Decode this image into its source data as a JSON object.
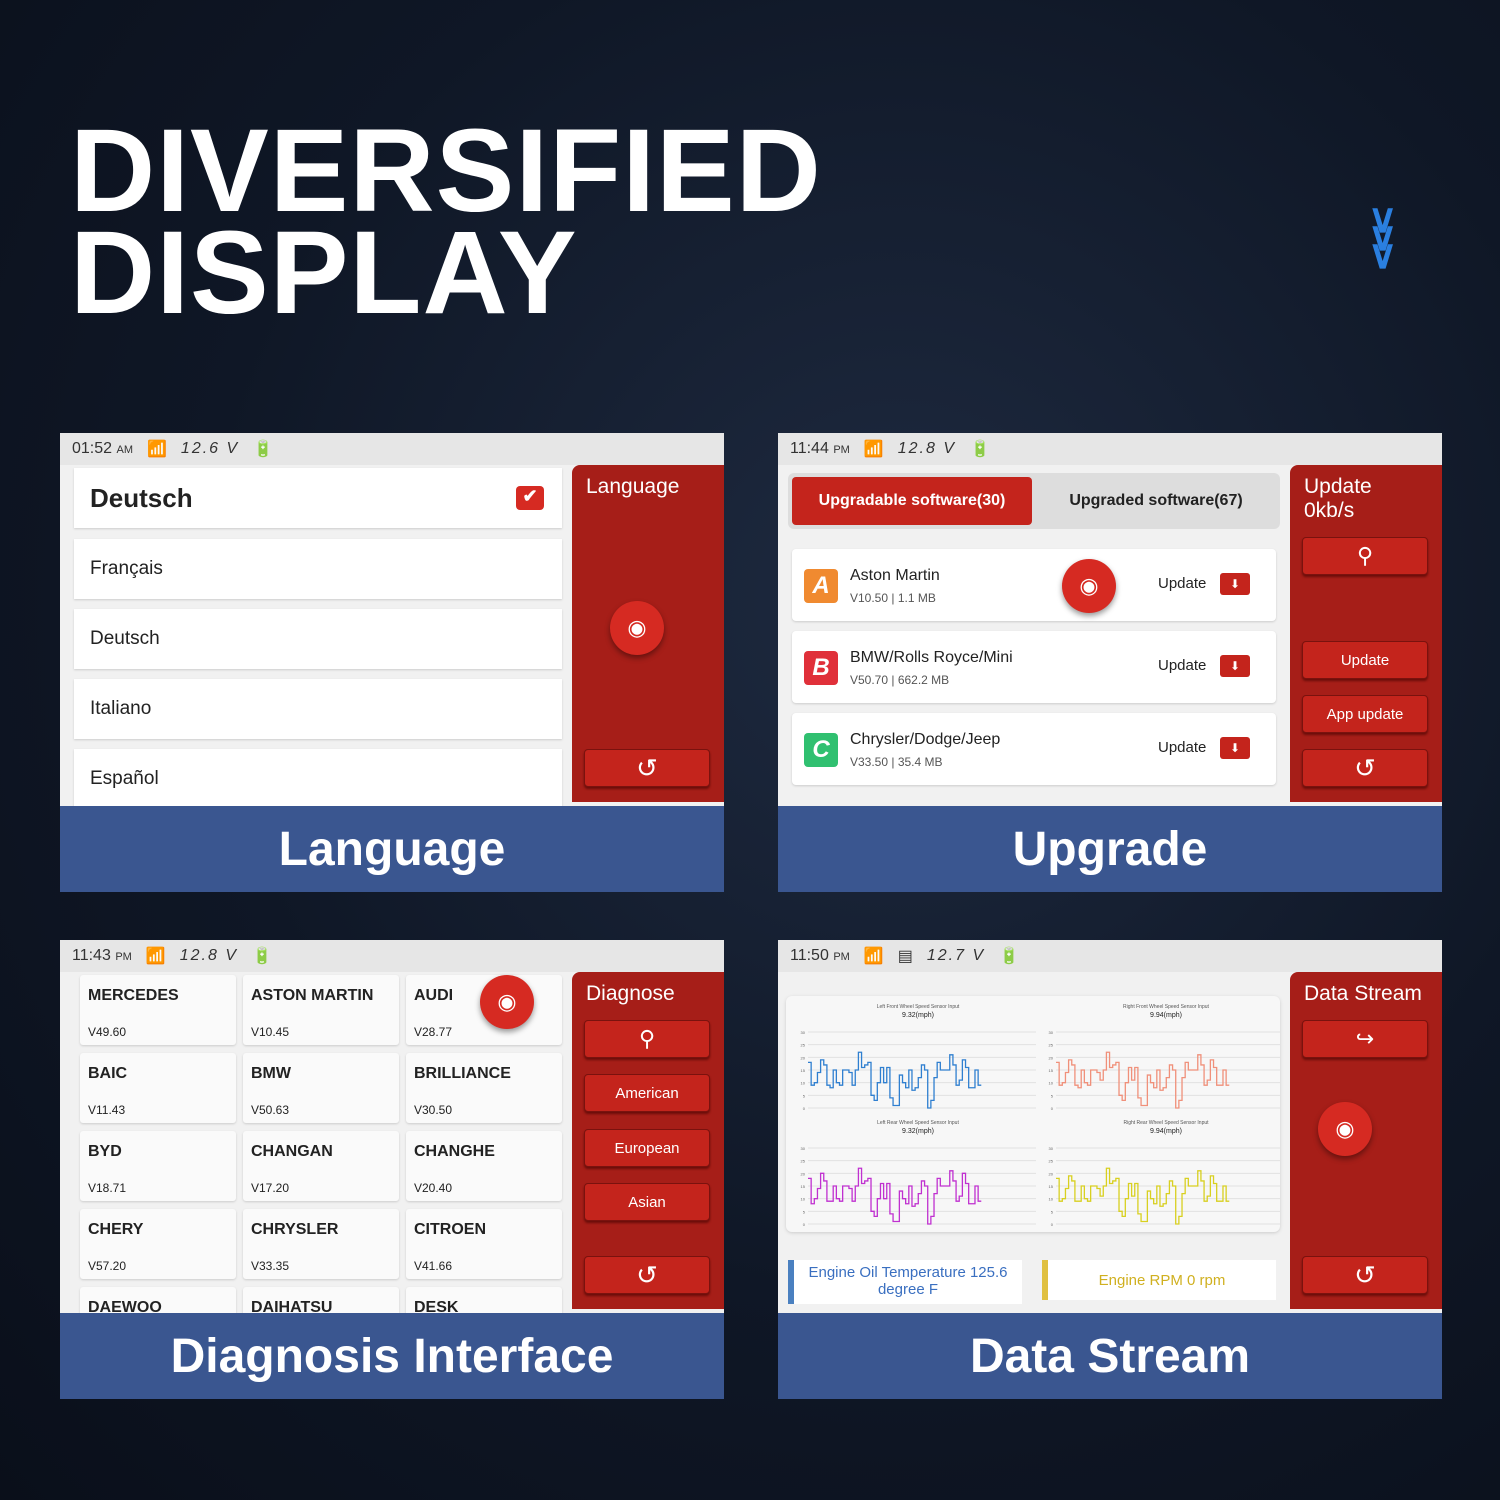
{
  "headline": {
    "line1": "DIVERSIFIED",
    "line2": "DISPLAY"
  },
  "icons": {
    "chevrons": "double-chevron-down-icon",
    "wifi": "wifi-icon",
    "battery": "battery-icon",
    "camera": "camera-icon",
    "search": "search-icon",
    "back": "back-arrow-icon",
    "exit": "exit-icon",
    "check": "checkbox-checked-icon",
    "download": "download-icon",
    "vci": "vci-connector-icon"
  },
  "colors": {
    "accent_red": "#a61e18",
    "caption_blue": "#3a5690",
    "blue": "#2f7fd0",
    "salmon": "#f0907a",
    "magenta": "#c030d0",
    "yellow": "#d8d020"
  },
  "language": {
    "time": "01:52",
    "ampm": "AM",
    "voltage": "12.6 V",
    "selected": "Deutsch",
    "items": [
      "Français",
      "Deutsch",
      "Italiano",
      "Español"
    ],
    "side_title": "Language",
    "caption": "Language"
  },
  "upgrade": {
    "time": "11:44",
    "ampm": "PM",
    "voltage": "12.8 V",
    "tabs": [
      "Upgradable software(30)",
      "Upgraded software(67)"
    ],
    "items": [
      {
        "letter": "A",
        "name": "Aston Martin",
        "meta": "V10.50 | 1.1 MB",
        "action": "Update"
      },
      {
        "letter": "B",
        "name": "BMW/Rolls Royce/Mini",
        "meta": "V50.70 | 662.2 MB",
        "action": "Update"
      },
      {
        "letter": "C",
        "name": "Chrysler/Dodge/Jeep",
        "meta": "V33.50 | 35.4 MB",
        "action": "Update"
      }
    ],
    "side_title": "Update",
    "speed": "0kb/s",
    "btn_update": "Update",
    "btn_app_update": "App update",
    "caption": "Upgrade"
  },
  "diagnose": {
    "time": "11:43",
    "ampm": "PM",
    "voltage": "12.8 V",
    "brands": [
      {
        "name": "MERCEDES",
        "ver": "V49.60"
      },
      {
        "name": "ASTON MARTIN",
        "ver": "V10.45"
      },
      {
        "name": "AUDI",
        "ver": "V28.77"
      },
      {
        "name": "BAIC",
        "ver": "V11.43"
      },
      {
        "name": "BMW",
        "ver": "V50.63"
      },
      {
        "name": "BRILLIANCE",
        "ver": "V30.50"
      },
      {
        "name": "BYD",
        "ver": "V18.71"
      },
      {
        "name": "CHANGAN",
        "ver": "V17.20"
      },
      {
        "name": "CHANGHE",
        "ver": "V20.40"
      },
      {
        "name": "CHERY",
        "ver": "V57.20"
      },
      {
        "name": "CHRYSLER",
        "ver": "V33.35"
      },
      {
        "name": "CITROEN",
        "ver": "V41.66"
      },
      {
        "name": "DAEWOO",
        "ver": ""
      },
      {
        "name": "DAIHATSU",
        "ver": ""
      },
      {
        "name": "DESK",
        "ver": ""
      }
    ],
    "side_title": "Diagnose",
    "filters": [
      "American",
      "European",
      "Asian"
    ],
    "caption": "Diagnosis Interface"
  },
  "datastream": {
    "time": "11:50",
    "ampm": "PM",
    "voltage": "12.7 V",
    "side_title": "Data Stream",
    "readouts": [
      "Engine Oil Temperature 125.6 degree F",
      "Engine RPM 0 rpm"
    ],
    "caption": "Data Stream"
  },
  "chart_data": [
    {
      "type": "line",
      "title": "Left Front Wheel Speed Sensor Input",
      "subtitle": "9.32(mph)",
      "ylim": [
        0,
        30
      ],
      "yticks": [
        0,
        5,
        10,
        15,
        20,
        25,
        30
      ],
      "grid": true,
      "color": "#2f7fd0",
      "values": [
        18,
        9,
        10,
        14,
        19,
        17,
        9,
        8,
        15,
        10,
        9,
        15,
        15,
        14,
        9,
        15,
        22,
        16,
        17,
        18,
        5,
        3,
        10,
        16,
        10,
        16,
        4,
        1,
        1,
        13,
        10,
        8,
        15,
        7,
        8,
        12,
        17,
        15,
        0,
        3,
        12,
        18,
        15,
        15,
        15,
        21,
        17,
        9,
        11,
        19,
        16,
        8,
        8,
        15,
        9
      ]
    },
    {
      "type": "line",
      "title": "Right Front Wheel Speed Sensor Input",
      "subtitle": "9.94(mph)",
      "ylim": [
        0,
        30
      ],
      "yticks": [
        0,
        5,
        10,
        15,
        20,
        25,
        30
      ],
      "grid": true,
      "color": "#f0907a",
      "values": [
        18,
        9,
        10,
        14,
        19,
        17,
        9,
        8,
        15,
        10,
        9,
        15,
        15,
        14,
        11,
        15,
        22,
        16,
        17,
        18,
        5,
        3,
        10,
        16,
        11,
        16,
        4,
        1,
        1,
        13,
        10,
        8,
        15,
        7,
        8,
        12,
        17,
        15,
        0,
        3,
        12,
        18,
        15,
        15,
        15,
        21,
        17,
        9,
        11,
        19,
        16,
        9,
        9,
        15,
        9
      ]
    },
    {
      "type": "line",
      "title": "Left Rear Wheel Speed Sensor Input",
      "subtitle": "9.32(mph)",
      "ylim": [
        0,
        30
      ],
      "yticks": [
        0,
        5,
        10,
        15,
        20,
        25,
        30
      ],
      "grid": true,
      "color": "#c030d0",
      "values": [
        18,
        8,
        10,
        14,
        20,
        17,
        9,
        9,
        15,
        10,
        9,
        15,
        15,
        14,
        9,
        15,
        22,
        16,
        17,
        18,
        5,
        3,
        10,
        16,
        10,
        16,
        4,
        1,
        1,
        13,
        10,
        8,
        15,
        7,
        8,
        12,
        17,
        15,
        0,
        3,
        12,
        18,
        15,
        15,
        15,
        21,
        17,
        9,
        11,
        20,
        16,
        8,
        8,
        15,
        9
      ]
    },
    {
      "type": "line",
      "title": "Right Rear Wheel Speed Sensor Input",
      "subtitle": "9.94(mph)",
      "ylim": [
        0,
        30
      ],
      "yticks": [
        0,
        5,
        10,
        15,
        20,
        25,
        30
      ],
      "grid": true,
      "color": "#d8d020",
      "values": [
        18,
        9,
        10,
        14,
        19,
        17,
        9,
        9,
        15,
        10,
        9,
        15,
        15,
        14,
        11,
        15,
        22,
        16,
        17,
        18,
        5,
        3,
        10,
        16,
        11,
        16,
        4,
        1,
        1,
        13,
        10,
        8,
        15,
        7,
        8,
        12,
        17,
        15,
        0,
        3,
        12,
        18,
        15,
        15,
        15,
        21,
        17,
        9,
        11,
        19,
        16,
        9,
        9,
        15,
        9
      ]
    }
  ]
}
